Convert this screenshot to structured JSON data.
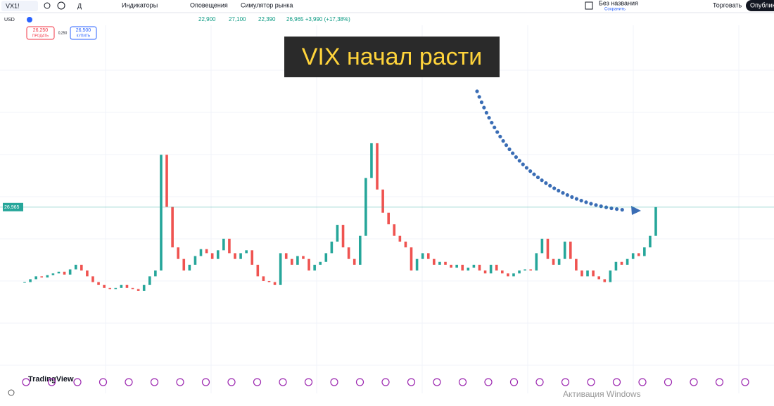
{
  "toolbar": {
    "symbol": "VX1!",
    "draw": "Д",
    "indicators": "Индикаторы",
    "alerts": "Оповещения",
    "simulator": "Симулятор рынка",
    "layout_name": "Без названия",
    "layout_saved": "Сохранить",
    "trade": "Торговать",
    "publish": "Опублико"
  },
  "legend": {
    "currency": "USD",
    "open": "22,900",
    "high": "27,100",
    "low": "22,390",
    "close": "26,965 +3,990 (+17,38%)"
  },
  "order": {
    "sell_price": "26,250",
    "sell": "ПРОДАТЬ",
    "spread": "0,250",
    "buy_price": "26,500",
    "buy": "КУПИТЬ"
  },
  "annotation": "VIX начал расти",
  "price_label": "26,965",
  "logo": "TradingView",
  "watermark": "Активация Windows",
  "chart": {
    "type": "candlestick",
    "ylim": [
      -2.8,
      57.9
    ],
    "closes": [
      14,
      14.5,
      15,
      14.8,
      15.2,
      15.5,
      15.8,
      15.3,
      16.2,
      17,
      16,
      15,
      14,
      13.5,
      13,
      12.8,
      13,
      13.5,
      13,
      12.8,
      12.5,
      13.5,
      15,
      16,
      36,
      27,
      20,
      18,
      16,
      17,
      18.5,
      19.7,
      19,
      18,
      19.5,
      21.5,
      19,
      18,
      19,
      19.5,
      17,
      15,
      14.2,
      14,
      13.5,
      19,
      18,
      17,
      18.5,
      18,
      16,
      17,
      17.5,
      19,
      21,
      23.9,
      20,
      18,
      17,
      22,
      32,
      38,
      30,
      26,
      24,
      22,
      21,
      20,
      16,
      18,
      19,
      18,
      17,
      17.5,
      17,
      16.5,
      17,
      16,
      16.5,
      17,
      16,
      15.5,
      17,
      16,
      15.5,
      15,
      15.5,
      16,
      16.2,
      16,
      19,
      21.5,
      18,
      17,
      18,
      21,
      18,
      16,
      15,
      16,
      15,
      14.5,
      14,
      16,
      17.5,
      17,
      18,
      19,
      18.5,
      20,
      22,
      26.965
    ]
  }
}
